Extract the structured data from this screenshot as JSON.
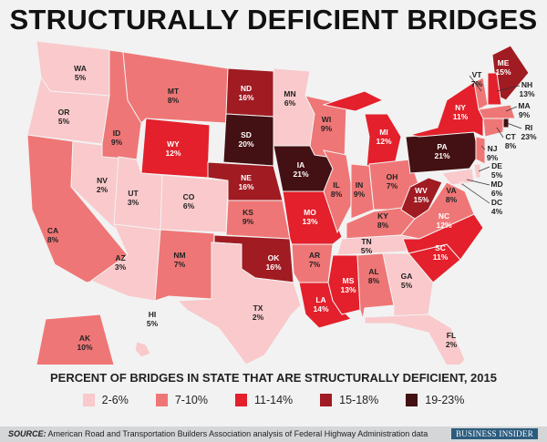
{
  "title": "STRUCTURALLY DEFICIENT BRIDGES",
  "legend": {
    "title": "PERCENT OF BRIDGES IN STATE THAT ARE STRUCTURALLY DEFICIENT, 2015",
    "bins": [
      {
        "label": "2-6%",
        "color": "#f9c9cb"
      },
      {
        "label": "7-10%",
        "color": "#ef7676"
      },
      {
        "label": "11-14%",
        "color": "#e3202b"
      },
      {
        "label": "15-18%",
        "color": "#a01b22"
      },
      {
        "label": "19-23%",
        "color": "#431013"
      }
    ]
  },
  "states": [
    {
      "abbr": "WA",
      "value": "5%",
      "bin": 0
    },
    {
      "abbr": "OR",
      "value": "5%",
      "bin": 0
    },
    {
      "abbr": "CA",
      "value": "8%",
      "bin": 1
    },
    {
      "abbr": "NV",
      "value": "2%",
      "bin": 0
    },
    {
      "abbr": "ID",
      "value": "9%",
      "bin": 1
    },
    {
      "abbr": "MT",
      "value": "8%",
      "bin": 1
    },
    {
      "abbr": "WY",
      "value": "12%",
      "bin": 2
    },
    {
      "abbr": "UT",
      "value": "3%",
      "bin": 0
    },
    {
      "abbr": "AZ",
      "value": "3%",
      "bin": 0
    },
    {
      "abbr": "CO",
      "value": "6%",
      "bin": 0
    },
    {
      "abbr": "NM",
      "value": "7%",
      "bin": 1
    },
    {
      "abbr": "ND",
      "value": "16%",
      "bin": 3
    },
    {
      "abbr": "SD",
      "value": "20%",
      "bin": 4
    },
    {
      "abbr": "NE",
      "value": "16%",
      "bin": 3
    },
    {
      "abbr": "KS",
      "value": "9%",
      "bin": 1
    },
    {
      "abbr": "OK",
      "value": "16%",
      "bin": 3
    },
    {
      "abbr": "TX",
      "value": "2%",
      "bin": 0
    },
    {
      "abbr": "MN",
      "value": "6%",
      "bin": 0
    },
    {
      "abbr": "IA",
      "value": "21%",
      "bin": 4
    },
    {
      "abbr": "MO",
      "value": "13%",
      "bin": 2
    },
    {
      "abbr": "AR",
      "value": "7%",
      "bin": 1
    },
    {
      "abbr": "LA",
      "value": "14%",
      "bin": 2
    },
    {
      "abbr": "WI",
      "value": "9%",
      "bin": 1
    },
    {
      "abbr": "IL",
      "value": "8%",
      "bin": 1
    },
    {
      "abbr": "MI",
      "value": "12%",
      "bin": 2
    },
    {
      "abbr": "IN",
      "value": "9%",
      "bin": 1
    },
    {
      "abbr": "OH",
      "value": "7%",
      "bin": 1
    },
    {
      "abbr": "KY",
      "value": "8%",
      "bin": 1
    },
    {
      "abbr": "TN",
      "value": "5%",
      "bin": 0
    },
    {
      "abbr": "MS",
      "value": "13%",
      "bin": 2
    },
    {
      "abbr": "AL",
      "value": "8%",
      "bin": 1
    },
    {
      "abbr": "GA",
      "value": "5%",
      "bin": 0
    },
    {
      "abbr": "FL",
      "value": "2%",
      "bin": 0
    },
    {
      "abbr": "SC",
      "value": "11%",
      "bin": 2
    },
    {
      "abbr": "NC",
      "value": "12%",
      "bin": 2
    },
    {
      "abbr": "VA",
      "value": "8%",
      "bin": 1
    },
    {
      "abbr": "WV",
      "value": "15%",
      "bin": 3
    },
    {
      "abbr": "PA",
      "value": "21%",
      "bin": 4
    },
    {
      "abbr": "NY",
      "value": "11%",
      "bin": 2
    },
    {
      "abbr": "VT",
      "value": "7%",
      "bin": 1
    },
    {
      "abbr": "ME",
      "value": "15%",
      "bin": 3
    },
    {
      "abbr": "NH",
      "value": "13%",
      "bin": 2
    },
    {
      "abbr": "MA",
      "value": "9%",
      "bin": 1
    },
    {
      "abbr": "RI",
      "value": "23%",
      "bin": 4
    },
    {
      "abbr": "CT",
      "value": "8%",
      "bin": 1
    },
    {
      "abbr": "NJ",
      "value": "9%",
      "bin": 1
    },
    {
      "abbr": "DE",
      "value": "5%",
      "bin": 0
    },
    {
      "abbr": "MD",
      "value": "6%",
      "bin": 0
    },
    {
      "abbr": "DC",
      "value": "4%",
      "bin": 0
    },
    {
      "abbr": "AK",
      "value": "10%",
      "bin": 1
    },
    {
      "abbr": "HI",
      "value": "5%",
      "bin": 0
    }
  ],
  "footer": {
    "source_label": "SOURCE:",
    "source_text": "American Road and Transportation Builders Association analysis of Federal Highway Administration data",
    "brand": "BUSINESS INSIDER"
  }
}
